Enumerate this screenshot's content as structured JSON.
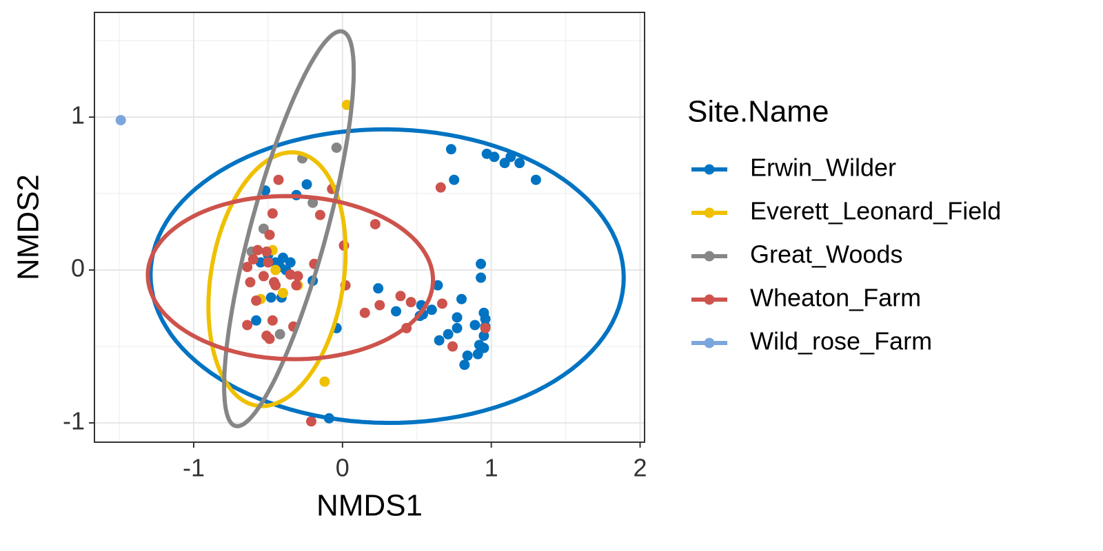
{
  "chart_data": {
    "type": "scatter",
    "x_label": "NMDS1",
    "y_label": "NMDS2",
    "xlim": [
      -1.667,
      2.03
    ],
    "ylim": [
      -1.126,
      1.685
    ],
    "xticks": [
      -1,
      0,
      1,
      2
    ],
    "yticks": [
      -1,
      0,
      1
    ],
    "x_minor_grid": [
      -1.5,
      -0.5,
      0.5,
      1.5
    ],
    "y_minor_grid": [
      -0.5,
      0.5,
      1.5
    ],
    "grid": true,
    "legend_title": "Site.Name",
    "legend_position": "right",
    "series": [
      {
        "name": "Erwin_Wilder",
        "color": "#0073c2",
        "x": [
          0.73,
          0.97,
          1.02,
          1.09,
          1.13,
          1.19,
          1.3,
          0.75,
          -0.52,
          -0.24,
          -0.31,
          -0.45,
          -0.4,
          -0.35,
          -0.42,
          -0.55,
          -0.5,
          -0.38,
          -0.48,
          -0.41,
          -0.58,
          -0.2,
          -0.04,
          -0.09,
          0.24,
          0.36,
          0.53,
          0.54,
          0.52,
          0.64,
          0.6,
          0.65,
          0.71,
          0.77,
          0.77,
          0.8,
          0.84,
          0.82,
          0.89,
          0.93,
          0.93,
          0.95,
          0.96,
          0.95,
          0.92,
          0.95,
          0.91,
          0.96
        ],
        "y": [
          0.79,
          0.76,
          0.74,
          0.7,
          0.74,
          0.7,
          0.59,
          0.59,
          0.52,
          0.56,
          0.49,
          0.05,
          0.08,
          0.05,
          0.02,
          0.05,
          0.1,
          0.0,
          -0.18,
          -0.18,
          -0.33,
          -0.07,
          -0.38,
          -0.97,
          -0.12,
          -0.27,
          -0.23,
          -0.29,
          -0.3,
          -0.1,
          -0.26,
          -0.46,
          -0.42,
          -0.31,
          -0.38,
          -0.19,
          -0.56,
          -0.62,
          -0.36,
          0.04,
          -0.05,
          -0.28,
          -0.32,
          -0.43,
          -0.49,
          -0.51,
          -0.55,
          -0.37
        ],
        "ellipse": {
          "center": [
            0.3,
            -0.04
          ],
          "axis1": [
            1.59,
            -0.01
          ],
          "axis2": [
            0.0,
            0.96
          ]
        }
      },
      {
        "name": "Everett_Leonard_Field",
        "color": "#efc000",
        "x": [
          0.03,
          -0.47,
          -0.45,
          -0.4,
          -0.55,
          -0.3,
          -0.12
        ],
        "y": [
          1.08,
          0.13,
          0.0,
          -0.15,
          -0.19,
          -0.1,
          -0.73
        ],
        "ellipse": {
          "center": [
            -0.44,
            -0.06
          ],
          "axis1": [
            0.45,
            0.0
          ],
          "axis2": [
            0.1,
            0.83
          ]
        }
      },
      {
        "name": "Great_Woods",
        "color": "#868686",
        "x": [
          -0.04,
          -0.27,
          -0.53,
          -0.2,
          -0.61,
          -0.42
        ],
        "y": [
          0.8,
          0.73,
          0.27,
          0.44,
          0.12,
          -0.42
        ],
        "ellipse": {
          "center": [
            -0.36,
            0.27
          ],
          "axis1": [
            0.245,
            -0.065
          ],
          "axis2": [
            0.36,
            1.29
          ]
        }
      },
      {
        "name": "Wheaton_Farm",
        "color": "#cd534c",
        "x": [
          -0.43,
          -0.47,
          -0.15,
          -0.07,
          0.01,
          0.22,
          -0.49,
          -0.57,
          -0.51,
          -0.6,
          -0.64,
          -0.5,
          -0.62,
          -0.53,
          -0.45,
          -0.35,
          -0.3,
          -0.31,
          -0.19,
          -0.46,
          -0.58,
          -0.64,
          -0.47,
          -0.33,
          -0.49,
          -0.51,
          0.02,
          0.15,
          0.25,
          0.39,
          0.46,
          0.43,
          0.74,
          0.67,
          0.96,
          0.66,
          -0.21
        ],
        "y": [
          0.59,
          0.37,
          0.36,
          0.53,
          0.16,
          0.3,
          0.23,
          0.13,
          0.12,
          0.07,
          0.02,
          0.05,
          -0.08,
          -0.04,
          -0.1,
          -0.03,
          -0.04,
          -0.1,
          0.04,
          -0.08,
          -0.2,
          -0.36,
          -0.33,
          -0.37,
          -0.45,
          -0.43,
          -0.1,
          -0.28,
          -0.23,
          -0.17,
          -0.21,
          -0.38,
          -0.5,
          -0.22,
          -0.38,
          0.54,
          -0.99
        ],
        "ellipse": {
          "center": [
            -0.35,
            -0.05
          ],
          "axis1": [
            0.955,
            -0.06
          ],
          "axis2": [
            0.08,
            0.53
          ]
        }
      },
      {
        "name": "Wild_rose_Farm",
        "color": "#7aa6dc",
        "x": [
          -1.49
        ],
        "y": [
          0.98
        ]
      }
    ]
  }
}
